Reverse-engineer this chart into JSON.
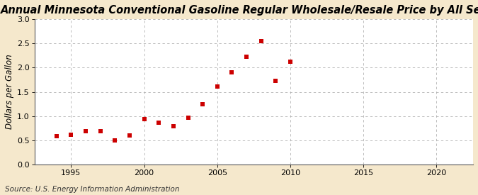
{
  "title": "Annual Minnesota Conventional Gasoline Regular Wholesale/Resale Price by All Sellers",
  "ylabel": "Dollars per Gallon",
  "source": "Source: U.S. Energy Information Administration",
  "years": [
    1994,
    1995,
    1996,
    1997,
    1998,
    1999,
    2000,
    2001,
    2002,
    2003,
    2004,
    2005,
    2006,
    2007,
    2008,
    2009,
    2010
  ],
  "values": [
    0.59,
    0.61,
    0.68,
    0.68,
    0.49,
    0.6,
    0.94,
    0.86,
    0.79,
    0.97,
    1.24,
    1.61,
    1.91,
    2.23,
    2.55,
    1.73,
    2.13
  ],
  "marker_color": "#cc0000",
  "figure_bg_color": "#f5e8cc",
  "plot_bg_color": "#ffffff",
  "grid_color": "#aaaaaa",
  "xlim": [
    1992.5,
    2022.5
  ],
  "ylim": [
    0.0,
    3.0
  ],
  "xticks": [
    1995,
    2000,
    2005,
    2010,
    2015,
    2020
  ],
  "yticks": [
    0.0,
    0.5,
    1.0,
    1.5,
    2.0,
    2.5,
    3.0
  ],
  "title_fontsize": 10.5,
  "label_fontsize": 8.5,
  "tick_fontsize": 8,
  "source_fontsize": 7.5
}
